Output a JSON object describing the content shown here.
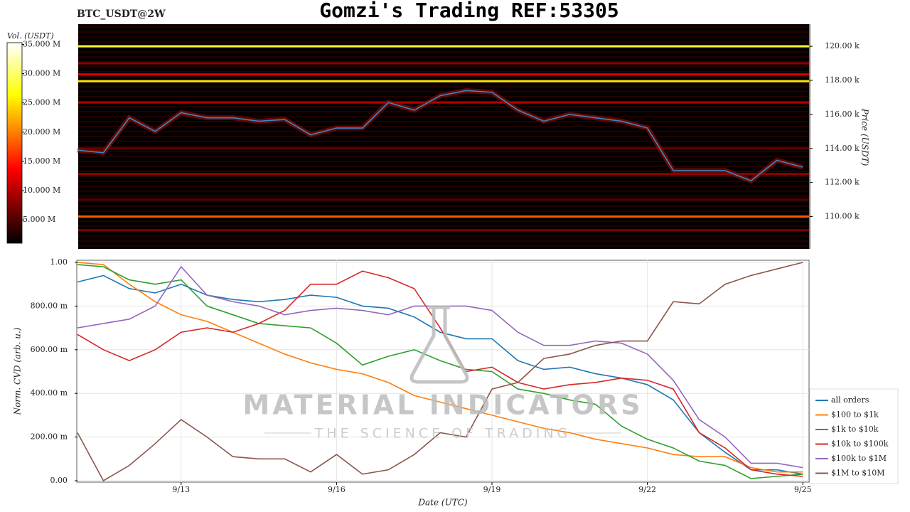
{
  "chart_data": [
    {
      "type": "heatmap",
      "title": "Gomzi's Trading REF:53305",
      "subtitle": "BTC_USDT@2W",
      "colorbar_label": "Vol. (USDT)",
      "ylabel": "Price (USDT)",
      "xlim": [
        11.0,
        25.12
      ],
      "ylim": [
        108100,
        121300
      ],
      "yticks": [
        {
          "value": 110000,
          "label": "110.00 k"
        },
        {
          "value": 112000,
          "label": "112.00 k"
        },
        {
          "value": 114000,
          "label": "114.00 k"
        },
        {
          "value": 116000,
          "label": "116.00 k"
        },
        {
          "value": 118000,
          "label": "118.00 k"
        },
        {
          "value": 120000,
          "label": "120.00 k"
        }
      ],
      "zlim": [
        1000000,
        35300000
      ],
      "zticks": [
        {
          "value": 5000000,
          "label": "5.000 M"
        },
        {
          "value": 10000000,
          "label": "10.000 M"
        },
        {
          "value": 15000000,
          "label": "15.000 M"
        },
        {
          "value": 20000000,
          "label": "20.000 M"
        },
        {
          "value": 25000000,
          "label": "25.000 M"
        },
        {
          "value": 30000000,
          "label": "30.000 M"
        },
        {
          "value": 35000000,
          "label": "35.000 M"
        }
      ],
      "levels": [
        120000,
        117950,
        118350,
        119000,
        110000,
        116700,
        112500,
        114000,
        109200,
        111000
      ],
      "volumes": [
        28000000,
        25000000,
        12000000,
        8000000,
        18000000,
        10000000,
        8000000,
        6000000,
        7000000,
        5000000
      ],
      "x": [
        11.0,
        11.5,
        12.0,
        12.5,
        13.0,
        13.5,
        14.0,
        14.5,
        15.0,
        15.5,
        16.0,
        16.5,
        17.0,
        17.5,
        18.0,
        18.5,
        19.0,
        19.5,
        20.0,
        20.5,
        21.0,
        21.5,
        22.0,
        22.5,
        23.0,
        23.5,
        24.0,
        24.5,
        25.0
      ],
      "series": [
        {
          "name": "Price",
          "color": "#3a86c8",
          "values": [
            113900,
            113750,
            115800,
            115000,
            116100,
            115800,
            115800,
            115600,
            115700,
            114800,
            115200,
            115200,
            116700,
            116250,
            117100,
            117400,
            117300,
            116250,
            115600,
            116000,
            115800,
            115600,
            115200,
            112700,
            112700,
            112700,
            112100,
            113300,
            112900
          ]
        }
      ]
    },
    {
      "type": "line",
      "xlabel": "Date (UTC)",
      "ylabel": "Norm. CVD (arb. u.)",
      "xlim": [
        11.0,
        25.12
      ],
      "xticks": [
        {
          "value": 13,
          "label": "9/13"
        },
        {
          "value": 16,
          "label": "9/16"
        },
        {
          "value": 19,
          "label": "9/19"
        },
        {
          "value": 22,
          "label": "9/22"
        },
        {
          "value": 25,
          "label": "9/25"
        }
      ],
      "ylim": [
        0,
        1
      ],
      "yticks": [
        {
          "value": 0,
          "label": "0.00"
        },
        {
          "value": 0.2,
          "label": "200.00 m"
        },
        {
          "value": 0.4,
          "label": "400.00 m"
        },
        {
          "value": 0.6,
          "label": "600.00 m"
        },
        {
          "value": 0.8,
          "label": "800.00 m"
        },
        {
          "value": 1,
          "label": "1.00"
        }
      ],
      "grid": true,
      "legend": "lower right",
      "x": [
        11.0,
        11.5,
        12.0,
        12.5,
        13.0,
        13.5,
        14.0,
        14.5,
        15.0,
        15.5,
        16.0,
        16.5,
        17.0,
        17.5,
        18.0,
        18.5,
        19.0,
        19.5,
        20.0,
        20.5,
        21.0,
        21.5,
        22.0,
        22.5,
        23.0,
        23.5,
        24.0,
        24.5,
        25.0
      ],
      "series": [
        {
          "name": "all orders",
          "color": "#1f77b4",
          "values": [
            0.91,
            0.94,
            0.88,
            0.86,
            0.9,
            0.85,
            0.83,
            0.82,
            0.83,
            0.85,
            0.84,
            0.8,
            0.79,
            0.75,
            0.68,
            0.65,
            0.65,
            0.55,
            0.51,
            0.52,
            0.49,
            0.47,
            0.44,
            0.37,
            0.22,
            0.13,
            0.05,
            0.05,
            0.03
          ]
        },
        {
          "name": "$100 to $1k",
          "color": "#ff7f0e",
          "values": [
            1.0,
            0.99,
            0.9,
            0.82,
            0.76,
            0.73,
            0.68,
            0.63,
            0.58,
            0.54,
            0.51,
            0.49,
            0.45,
            0.39,
            0.36,
            0.33,
            0.3,
            0.27,
            0.24,
            0.22,
            0.19,
            0.17,
            0.15,
            0.12,
            0.11,
            0.11,
            0.06,
            0.04,
            0.04
          ]
        },
        {
          "name": "$1k to $10k",
          "color": "#2ca02c",
          "values": [
            0.99,
            0.98,
            0.92,
            0.9,
            0.92,
            0.8,
            0.76,
            0.72,
            0.71,
            0.7,
            0.63,
            0.53,
            0.57,
            0.6,
            0.55,
            0.51,
            0.5,
            0.42,
            0.4,
            0.37,
            0.35,
            0.25,
            0.19,
            0.15,
            0.09,
            0.07,
            0.01,
            0.02,
            0.03
          ]
        },
        {
          "name": "$10k to $100k",
          "color": "#d62728",
          "values": [
            0.67,
            0.6,
            0.55,
            0.6,
            0.68,
            0.7,
            0.68,
            0.72,
            0.78,
            0.9,
            0.9,
            0.96,
            0.93,
            0.88,
            0.7,
            0.5,
            0.52,
            0.45,
            0.42,
            0.44,
            0.45,
            0.47,
            0.46,
            0.42,
            0.22,
            0.15,
            0.05,
            0.03,
            0.02
          ]
        },
        {
          "name": "$100k to $1M",
          "color": "#9467bd",
          "values": [
            0.7,
            0.72,
            0.74,
            0.8,
            0.98,
            0.85,
            0.82,
            0.8,
            0.76,
            0.78,
            0.79,
            0.78,
            0.76,
            0.8,
            0.8,
            0.8,
            0.78,
            0.68,
            0.62,
            0.62,
            0.64,
            0.63,
            0.58,
            0.46,
            0.28,
            0.2,
            0.08,
            0.08,
            0.06
          ]
        },
        {
          "name": "$1M to $10M",
          "color": "#8c564b",
          "values": [
            0.22,
            0.0,
            0.07,
            0.17,
            0.28,
            0.2,
            0.11,
            0.1,
            0.1,
            0.04,
            0.12,
            0.03,
            0.05,
            0.12,
            0.22,
            0.2,
            0.42,
            0.45,
            0.56,
            0.58,
            0.62,
            0.64,
            0.64,
            0.82,
            0.81,
            0.9,
            0.94,
            0.97,
            1.0
          ]
        }
      ]
    }
  ],
  "watermark": {
    "title": "MATERIAL INDICATORS",
    "subtitle": "THE SCIENCE OF TRADING"
  }
}
